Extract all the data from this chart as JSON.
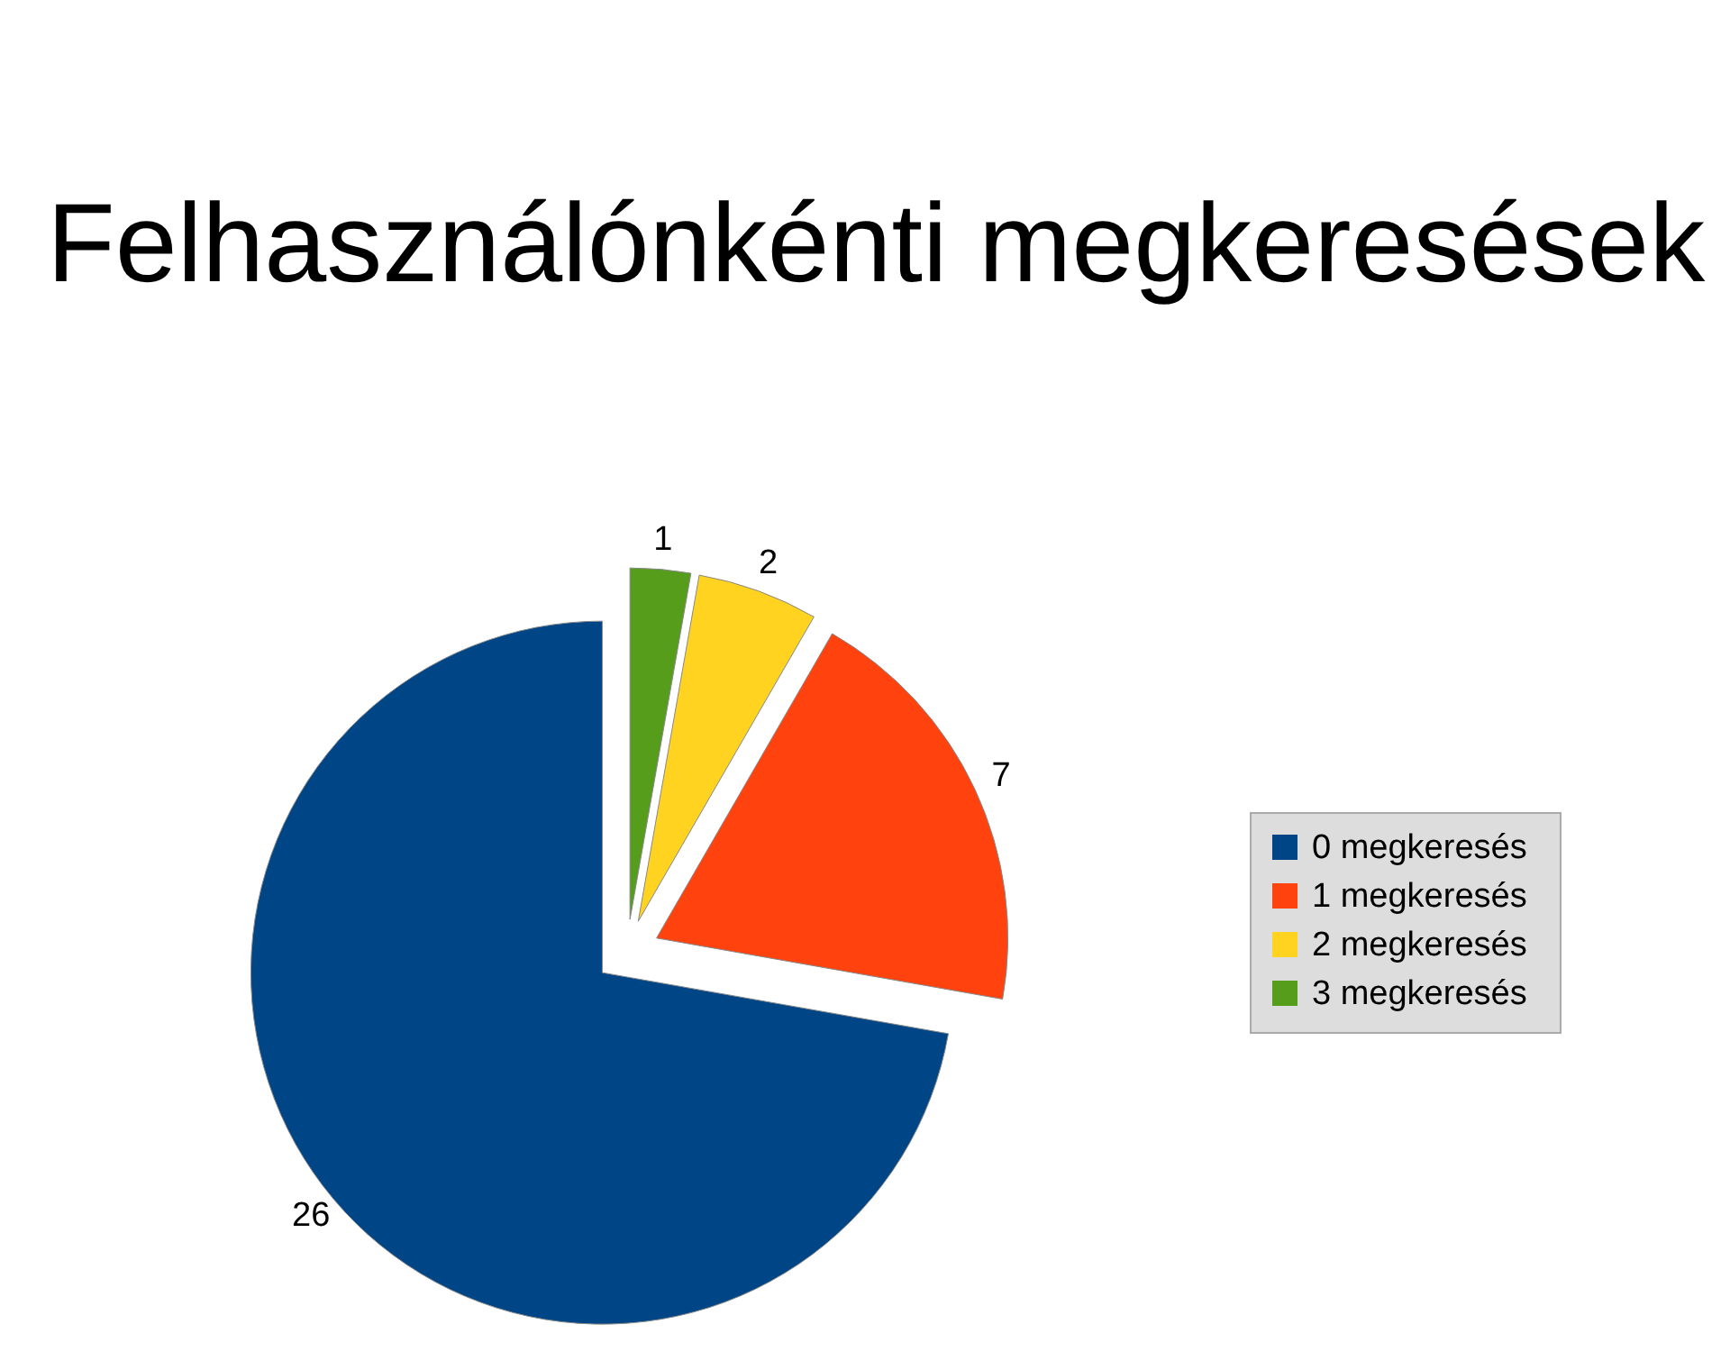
{
  "chart_data": {
    "type": "pie",
    "title": "Felhasználónkénti megkeresések",
    "categories": [
      "0 megkeresés",
      "1 megkeresés",
      "2 megkeresés",
      "3 megkeresés"
    ],
    "values": [
      26,
      7,
      2,
      1
    ],
    "colors": [
      "#004586",
      "#ff420e",
      "#ffd320",
      "#579d1c"
    ],
    "data_labels": true,
    "legend": "right"
  }
}
